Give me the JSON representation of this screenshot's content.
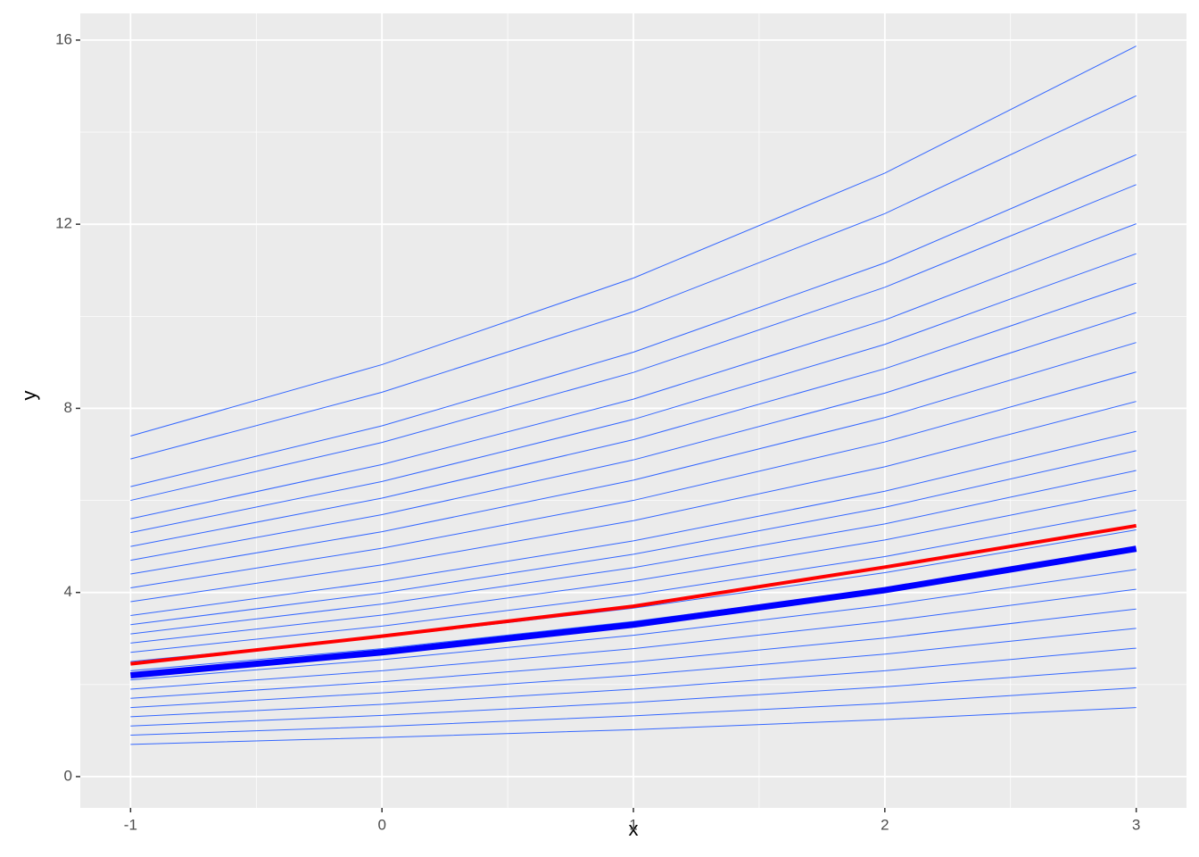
{
  "chart_data": {
    "type": "line",
    "x_label": "x",
    "y_label": "y",
    "x": [
      -1,
      0,
      1,
      2,
      3
    ],
    "xlim": [
      -1.2,
      3.2
    ],
    "ylim": [
      -0.68,
      16.58
    ],
    "xticks": [
      -1,
      0,
      1,
      2,
      3
    ],
    "yticks": [
      0,
      4,
      8,
      12,
      16
    ],
    "grid": true,
    "background": "#ebebeb",
    "series": [
      {
        "color": "#3366ff",
        "width": 1,
        "values": [
          0.7,
          0.85,
          1.02,
          1.24,
          1.5
        ]
      },
      {
        "color": "#3366ff",
        "width": 1,
        "values": [
          0.9,
          1.09,
          1.32,
          1.59,
          1.93
        ]
      },
      {
        "color": "#3366ff",
        "width": 1,
        "values": [
          1.1,
          1.33,
          1.61,
          1.95,
          2.36
        ]
      },
      {
        "color": "#3366ff",
        "width": 1,
        "values": [
          1.3,
          1.57,
          1.9,
          2.3,
          2.79
        ]
      },
      {
        "color": "#3366ff",
        "width": 1,
        "values": [
          1.5,
          1.82,
          2.2,
          2.66,
          3.22
        ]
      },
      {
        "color": "#3366ff",
        "width": 1,
        "values": [
          1.7,
          2.06,
          2.49,
          3.01,
          3.64
        ]
      },
      {
        "color": "#3366ff",
        "width": 1,
        "values": [
          1.9,
          2.3,
          2.78,
          3.37,
          4.07
        ]
      },
      {
        "color": "#3366ff",
        "width": 1,
        "values": [
          2.1,
          2.54,
          3.07,
          3.72,
          4.5
        ]
      },
      {
        "color": "#3366ff",
        "width": 1,
        "values": [
          2.3,
          2.78,
          3.37,
          4.08,
          4.93
        ]
      },
      {
        "color": "#3366ff",
        "width": 1,
        "values": [
          2.5,
          3.03,
          3.66,
          4.43,
          5.36
        ]
      },
      {
        "color": "#3366ff",
        "width": 1,
        "values": [
          2.7,
          3.27,
          3.95,
          4.78,
          5.79
        ]
      },
      {
        "color": "#3366ff",
        "width": 1,
        "values": [
          2.9,
          3.51,
          4.25,
          5.14,
          6.22
        ]
      },
      {
        "color": "#3366ff",
        "width": 1,
        "values": [
          3.1,
          3.75,
          4.54,
          5.49,
          6.65
        ]
      },
      {
        "color": "#3366ff",
        "width": 1,
        "values": [
          3.3,
          3.99,
          4.83,
          5.85,
          7.08
        ]
      },
      {
        "color": "#3366ff",
        "width": 1,
        "values": [
          3.5,
          4.24,
          5.12,
          6.2,
          7.5
        ]
      },
      {
        "color": "#3366ff",
        "width": 1,
        "values": [
          3.8,
          4.6,
          5.56,
          6.73,
          8.15
        ]
      },
      {
        "color": "#3366ff",
        "width": 1,
        "values": [
          4.1,
          4.96,
          6.0,
          7.27,
          8.79
        ]
      },
      {
        "color": "#3366ff",
        "width": 1,
        "values": [
          4.4,
          5.32,
          6.44,
          7.8,
          9.43
        ]
      },
      {
        "color": "#3366ff",
        "width": 1,
        "values": [
          4.7,
          5.69,
          6.88,
          8.33,
          10.08
        ]
      },
      {
        "color": "#3366ff",
        "width": 1,
        "values": [
          5.0,
          6.05,
          7.32,
          8.86,
          10.72
        ]
      },
      {
        "color": "#3366ff",
        "width": 1,
        "values": [
          5.3,
          6.41,
          7.76,
          9.39,
          11.36
        ]
      },
      {
        "color": "#3366ff",
        "width": 1,
        "values": [
          5.6,
          6.78,
          8.2,
          9.92,
          12.01
        ]
      },
      {
        "color": "#3366ff",
        "width": 1,
        "values": [
          6.0,
          7.26,
          8.78,
          10.63,
          12.86
        ]
      },
      {
        "color": "#3366ff",
        "width": 1,
        "values": [
          6.3,
          7.62,
          9.22,
          11.16,
          13.51
        ]
      },
      {
        "color": "#3366ff",
        "width": 1,
        "values": [
          6.9,
          8.35,
          10.1,
          12.23,
          14.79
        ]
      },
      {
        "color": "#3366ff",
        "width": 1,
        "values": [
          7.4,
          8.95,
          10.83,
          13.11,
          15.87
        ]
      },
      {
        "color": "#0000ff",
        "width": 7,
        "values": [
          2.2,
          2.7,
          3.3,
          4.05,
          4.95
        ]
      },
      {
        "color": "#ff0000",
        "width": 4,
        "values": [
          2.45,
          3.05,
          3.7,
          4.55,
          5.45
        ]
      }
    ]
  }
}
